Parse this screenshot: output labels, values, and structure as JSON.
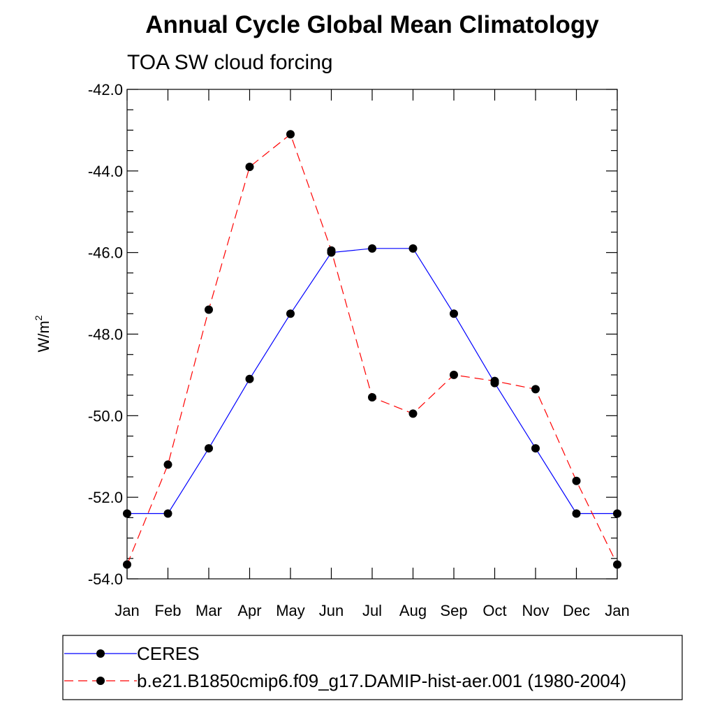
{
  "chart_data": {
    "type": "line",
    "title": "Annual Cycle Global Mean Climatology",
    "subtitle": "TOA SW cloud forcing",
    "xlabel": "",
    "ylabel": "W/m",
    "ylabel_superscript": "2",
    "categories": [
      "Jan",
      "Feb",
      "Mar",
      "Apr",
      "May",
      "Jun",
      "Jul",
      "Aug",
      "Sep",
      "Oct",
      "Nov",
      "Dec",
      "Jan"
    ],
    "yticks": [
      "-42.0",
      "-44.0",
      "-46.0",
      "-48.0",
      "-50.0",
      "-52.0",
      "-54.0"
    ],
    "ylim": [
      -54,
      -42
    ],
    "grid": false,
    "legend_position": "bottom",
    "series": [
      {
        "name": "CERES",
        "color": "#0000ff",
        "line_style": "solid",
        "marker": "filled-circle",
        "values": [
          -52.4,
          -52.4,
          -50.8,
          -49.1,
          -47.5,
          -46.0,
          -45.9,
          -45.9,
          -47.5,
          -49.2,
          -50.8,
          -52.4,
          -52.4
        ]
      },
      {
        "name": "b.e21.B1850cmip6.f09_g17.DAMIP-hist-aer.001 (1980-2004)",
        "color": "#ff0000",
        "line_style": "dashed",
        "marker": "filled-circle",
        "values": [
          -53.65,
          -51.2,
          -47.4,
          -43.9,
          -43.1,
          -45.95,
          -49.55,
          -49.95,
          -49.0,
          -49.15,
          -49.35,
          -51.6,
          -53.65
        ]
      }
    ]
  }
}
